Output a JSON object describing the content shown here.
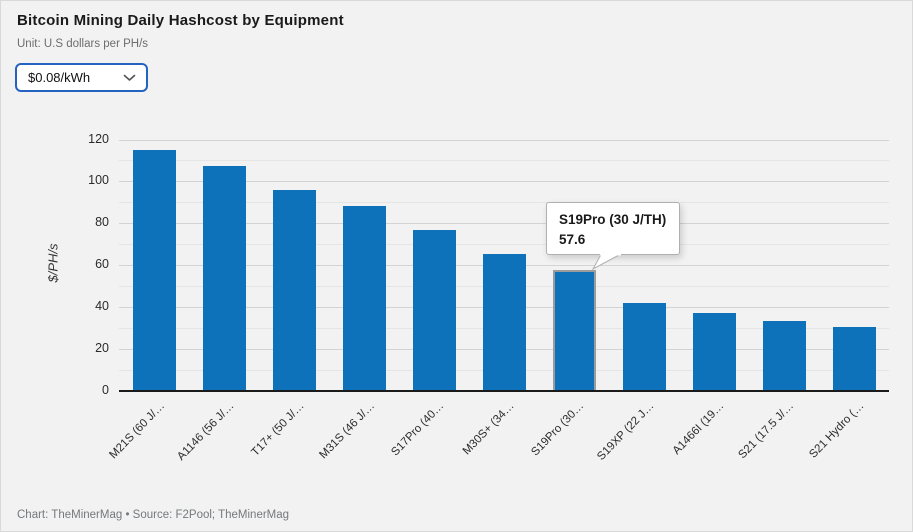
{
  "header": {
    "price_selector_value": "$0.08/kWh"
  },
  "chart_data": {
    "type": "bar",
    "title": "Bitcoin Mining Daily Hashcost by Equipment",
    "subtitle": "Unit: U.S dollars per PH/s",
    "ylabel": "$/PH/s",
    "ylim": [
      0,
      120
    ],
    "yticks": [
      0,
      20,
      40,
      60,
      80,
      100,
      120
    ],
    "minor_gridline_interval": 10,
    "grid": "horizontal",
    "categories": [
      "M21S (60 J/…",
      "A1146 (56 J/…",
      "T17+ (50 J/…",
      "M31S (46 J/…",
      "S17Pro (40…",
      "M30S+ (34…",
      "S19Pro (30…",
      "S19XP (22 J…",
      "A1466I (19…",
      "S21 (17.5 J/…",
      "S21 Hydro (…"
    ],
    "values": [
      115.2,
      107.52,
      96,
      88.32,
      76.8,
      65.28,
      57.6,
      42.24,
      37.44,
      33.6,
      30.72
    ],
    "highlighted_bar_index": 6,
    "tooltip": {
      "label": "S19Pro (30 J/TH)",
      "value": "57.6"
    },
    "source_line": "Chart: TheMinerMag • Source: F2Pool; TheMinerMag"
  },
  "colors": {
    "bar": "#0d72b9",
    "highlight_outline": "#9c9c9c",
    "select_border": "#2563c2",
    "axis": "#1a1a1a",
    "grid_major": "#d3d3d3",
    "grid_minor": "#e5e5e5",
    "background": "#f2f2f2",
    "tooltip_border": "#b0b0b0"
  }
}
